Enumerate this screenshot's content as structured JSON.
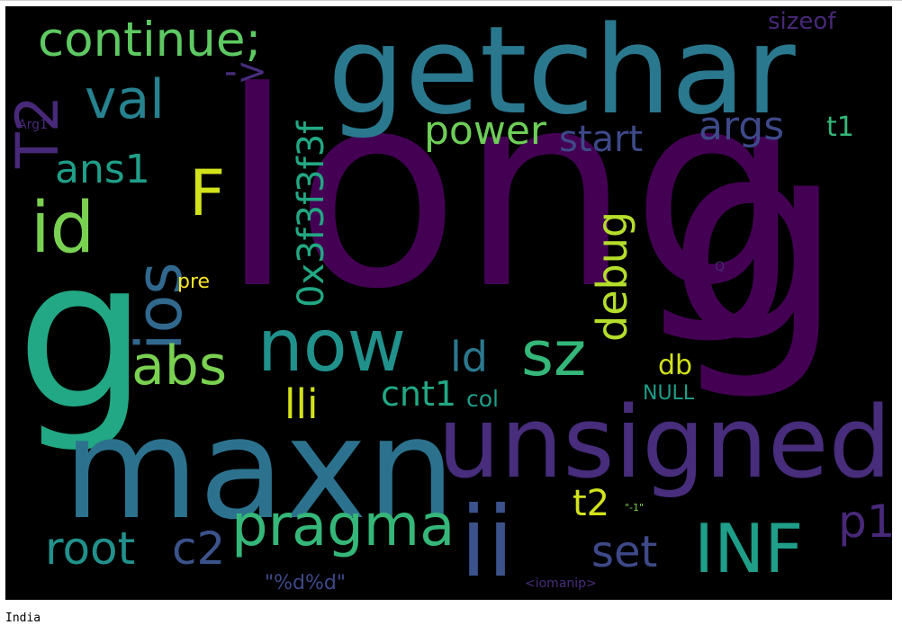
{
  "caption": "India",
  "words": {
    "long": {
      "text": "long",
      "color": "#440154"
    },
    "g": {
      "text": "g",
      "color": "#440154"
    },
    "g_left": {
      "text": "g",
      "color": "#22a884"
    },
    "getchar": {
      "text": "getchar",
      "color": "#2a788e"
    },
    "maxn": {
      "text": "maxn",
      "color": "#2c728e"
    },
    "unsigned": {
      "text": "unsigned",
      "color": "#472d7b"
    },
    "now": {
      "text": "now",
      "color": "#21918c"
    },
    "continue": {
      "text": "continue;",
      "color": "#5ec962"
    },
    "ii": {
      "text": "ii",
      "color": "#3b528b"
    },
    "inf": {
      "text": "INF",
      "color": "#1f9e89"
    },
    "pragma": {
      "text": "pragma",
      "color": "#35b779"
    },
    "sz": {
      "text": "sz",
      "color": "#35b779"
    },
    "ios": {
      "text": "ios",
      "color": "#31688e"
    },
    "t2_top": {
      "text": "T2",
      "color": "#482878"
    },
    "id": {
      "text": "id",
      "color": "#7ad151"
    },
    "f": {
      "text": "F",
      "color": "#d2e21b"
    },
    "val": {
      "text": "val",
      "color": "#26828e"
    },
    "abs": {
      "text": "abs",
      "color": "#7ad151"
    },
    "root": {
      "text": "root",
      "color": "#21918c"
    },
    "c2": {
      "text": "c2",
      "color": "#3b528b"
    },
    "set": {
      "text": "set",
      "color": "#3e4989"
    },
    "p1": {
      "text": "p1",
      "color": "#482878"
    },
    "hex": {
      "text": "0x3f3f3f3f",
      "color": "#22a884"
    },
    "debug": {
      "text": "debug",
      "color": "#b5de2b"
    },
    "ans1": {
      "text": "ans1",
      "color": "#1f9e89"
    },
    "power": {
      "text": "power",
      "color": "#6ece58"
    },
    "args": {
      "text": "args",
      "color": "#3e4989"
    },
    "start": {
      "text": "start",
      "color": "#3e4989"
    },
    "arrow": {
      "text": "->",
      "color": "#472d7b"
    },
    "t1": {
      "text": "t1",
      "color": "#35b779"
    },
    "ld": {
      "text": "ld",
      "color": "#2a788e"
    },
    "lli": {
      "text": "lli",
      "color": "#d2e21b"
    },
    "cnt1": {
      "text": "cnt1",
      "color": "#22a884"
    },
    "t2_low": {
      "text": "t2",
      "color": "#d2e21b"
    },
    "db": {
      "text": "db",
      "color": "#d2e21b"
    },
    "col": {
      "text": "col",
      "color": "#1f9e89"
    },
    "null": {
      "text": "NULL",
      "color": "#1f9e89"
    },
    "fmt": {
      "text": "\"%d%d\"",
      "color": "#3e4989"
    },
    "neg1": {
      "text": "\"-1\"",
      "color": "#7ad151"
    },
    "iomanip": {
      "text": "<iomanip>",
      "color": "#472d7b"
    },
    "sizeof": {
      "text": "sizeof",
      "color": "#482878"
    },
    "arg1": {
      "text": "Arg1",
      "color": "#482878"
    },
    "pre": {
      "text": "pre",
      "color": "#fde725"
    },
    "q": {
      "text": "Q",
      "color": "#482878"
    }
  }
}
